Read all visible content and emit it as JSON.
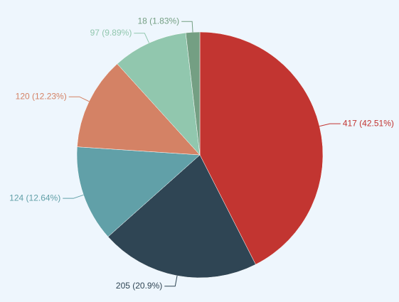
{
  "chart_data": {
    "type": "pie",
    "categories": [
      null,
      null,
      null,
      null,
      null,
      null
    ],
    "values": [
      417,
      205,
      124,
      120,
      97,
      18
    ],
    "value_labels": [
      "417 (42.51%)",
      "205 (20.9%)",
      "124 (12.64%)",
      "120 (12.23%)",
      "97 (9.89%)",
      "18 (1.83%)"
    ],
    "colors": [
      "#c23531",
      "#2f4554",
      "#61a0a8",
      "#d48265",
      "#91c7ae",
      "#749f83"
    ]
  }
}
